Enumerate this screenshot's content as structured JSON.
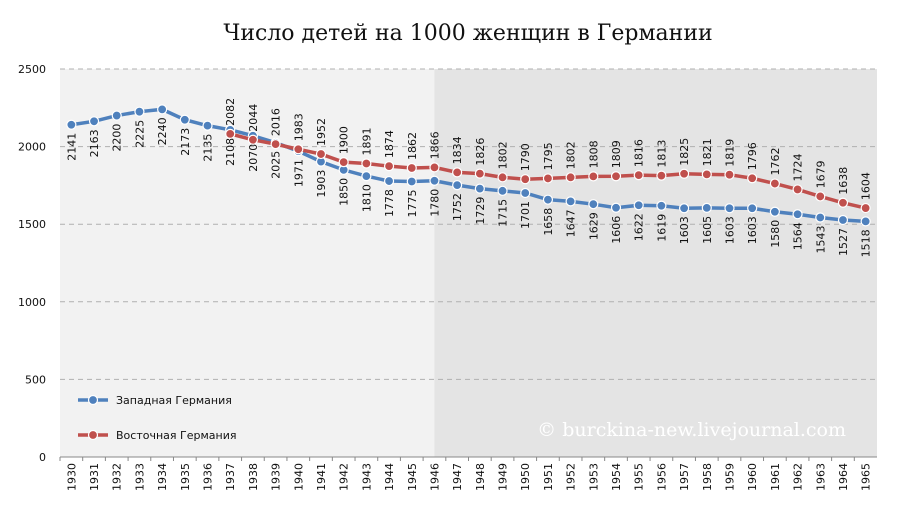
{
  "chart_data": {
    "type": "line",
    "title": "Число детей на 1000 женщин в Германии",
    "watermark": "© burckina-new.livejournal.com",
    "categories": [
      "1930",
      "1931",
      "1932",
      "1933",
      "1934",
      "1935",
      "1936",
      "1937",
      "1938",
      "1939",
      "1940",
      "1941",
      "1942",
      "1943",
      "1944",
      "1945",
      "1946",
      "1947",
      "1948",
      "1949",
      "1950",
      "1951",
      "1952",
      "1953",
      "1954",
      "1955",
      "1956",
      "1957",
      "1958",
      "1959",
      "1960",
      "1961",
      "1962",
      "1963",
      "1964",
      "1965"
    ],
    "series": [
      {
        "name": "Западная Германия",
        "color": "#4f81bd",
        "label_side": "below",
        "values": [
          2141,
          2163,
          2200,
          2225,
          2240,
          2173,
          2135,
          2108,
          2070,
          2025,
          1971,
          1903,
          1850,
          1810,
          1778,
          1775,
          1780,
          1752,
          1729,
          1715,
          1701,
          1658,
          1647,
          1629,
          1606,
          1622,
          1619,
          1603,
          1605,
          1603,
          1603,
          1580,
          1564,
          1543,
          1527,
          1518
        ]
      },
      {
        "name": "Восточная Германия",
        "color": "#c0504d",
        "label_side": "above",
        "values": [
          null,
          null,
          null,
          null,
          null,
          null,
          null,
          2082,
          2044,
          2016,
          1983,
          1952,
          1900,
          1891,
          1874,
          1862,
          1866,
          1834,
          1826,
          1802,
          1790,
          1795,
          1802,
          1808,
          1809,
          1816,
          1813,
          1825,
          1821,
          1819,
          1796,
          1762,
          1724,
          1679,
          1638,
          1604
        ]
      }
    ],
    "ylim": [
      0,
      2500
    ],
    "yticks": [
      0,
      500,
      1000,
      1500,
      2000,
      2500
    ],
    "grid": true,
    "shade_start": "1946",
    "legend": "lower left"
  }
}
